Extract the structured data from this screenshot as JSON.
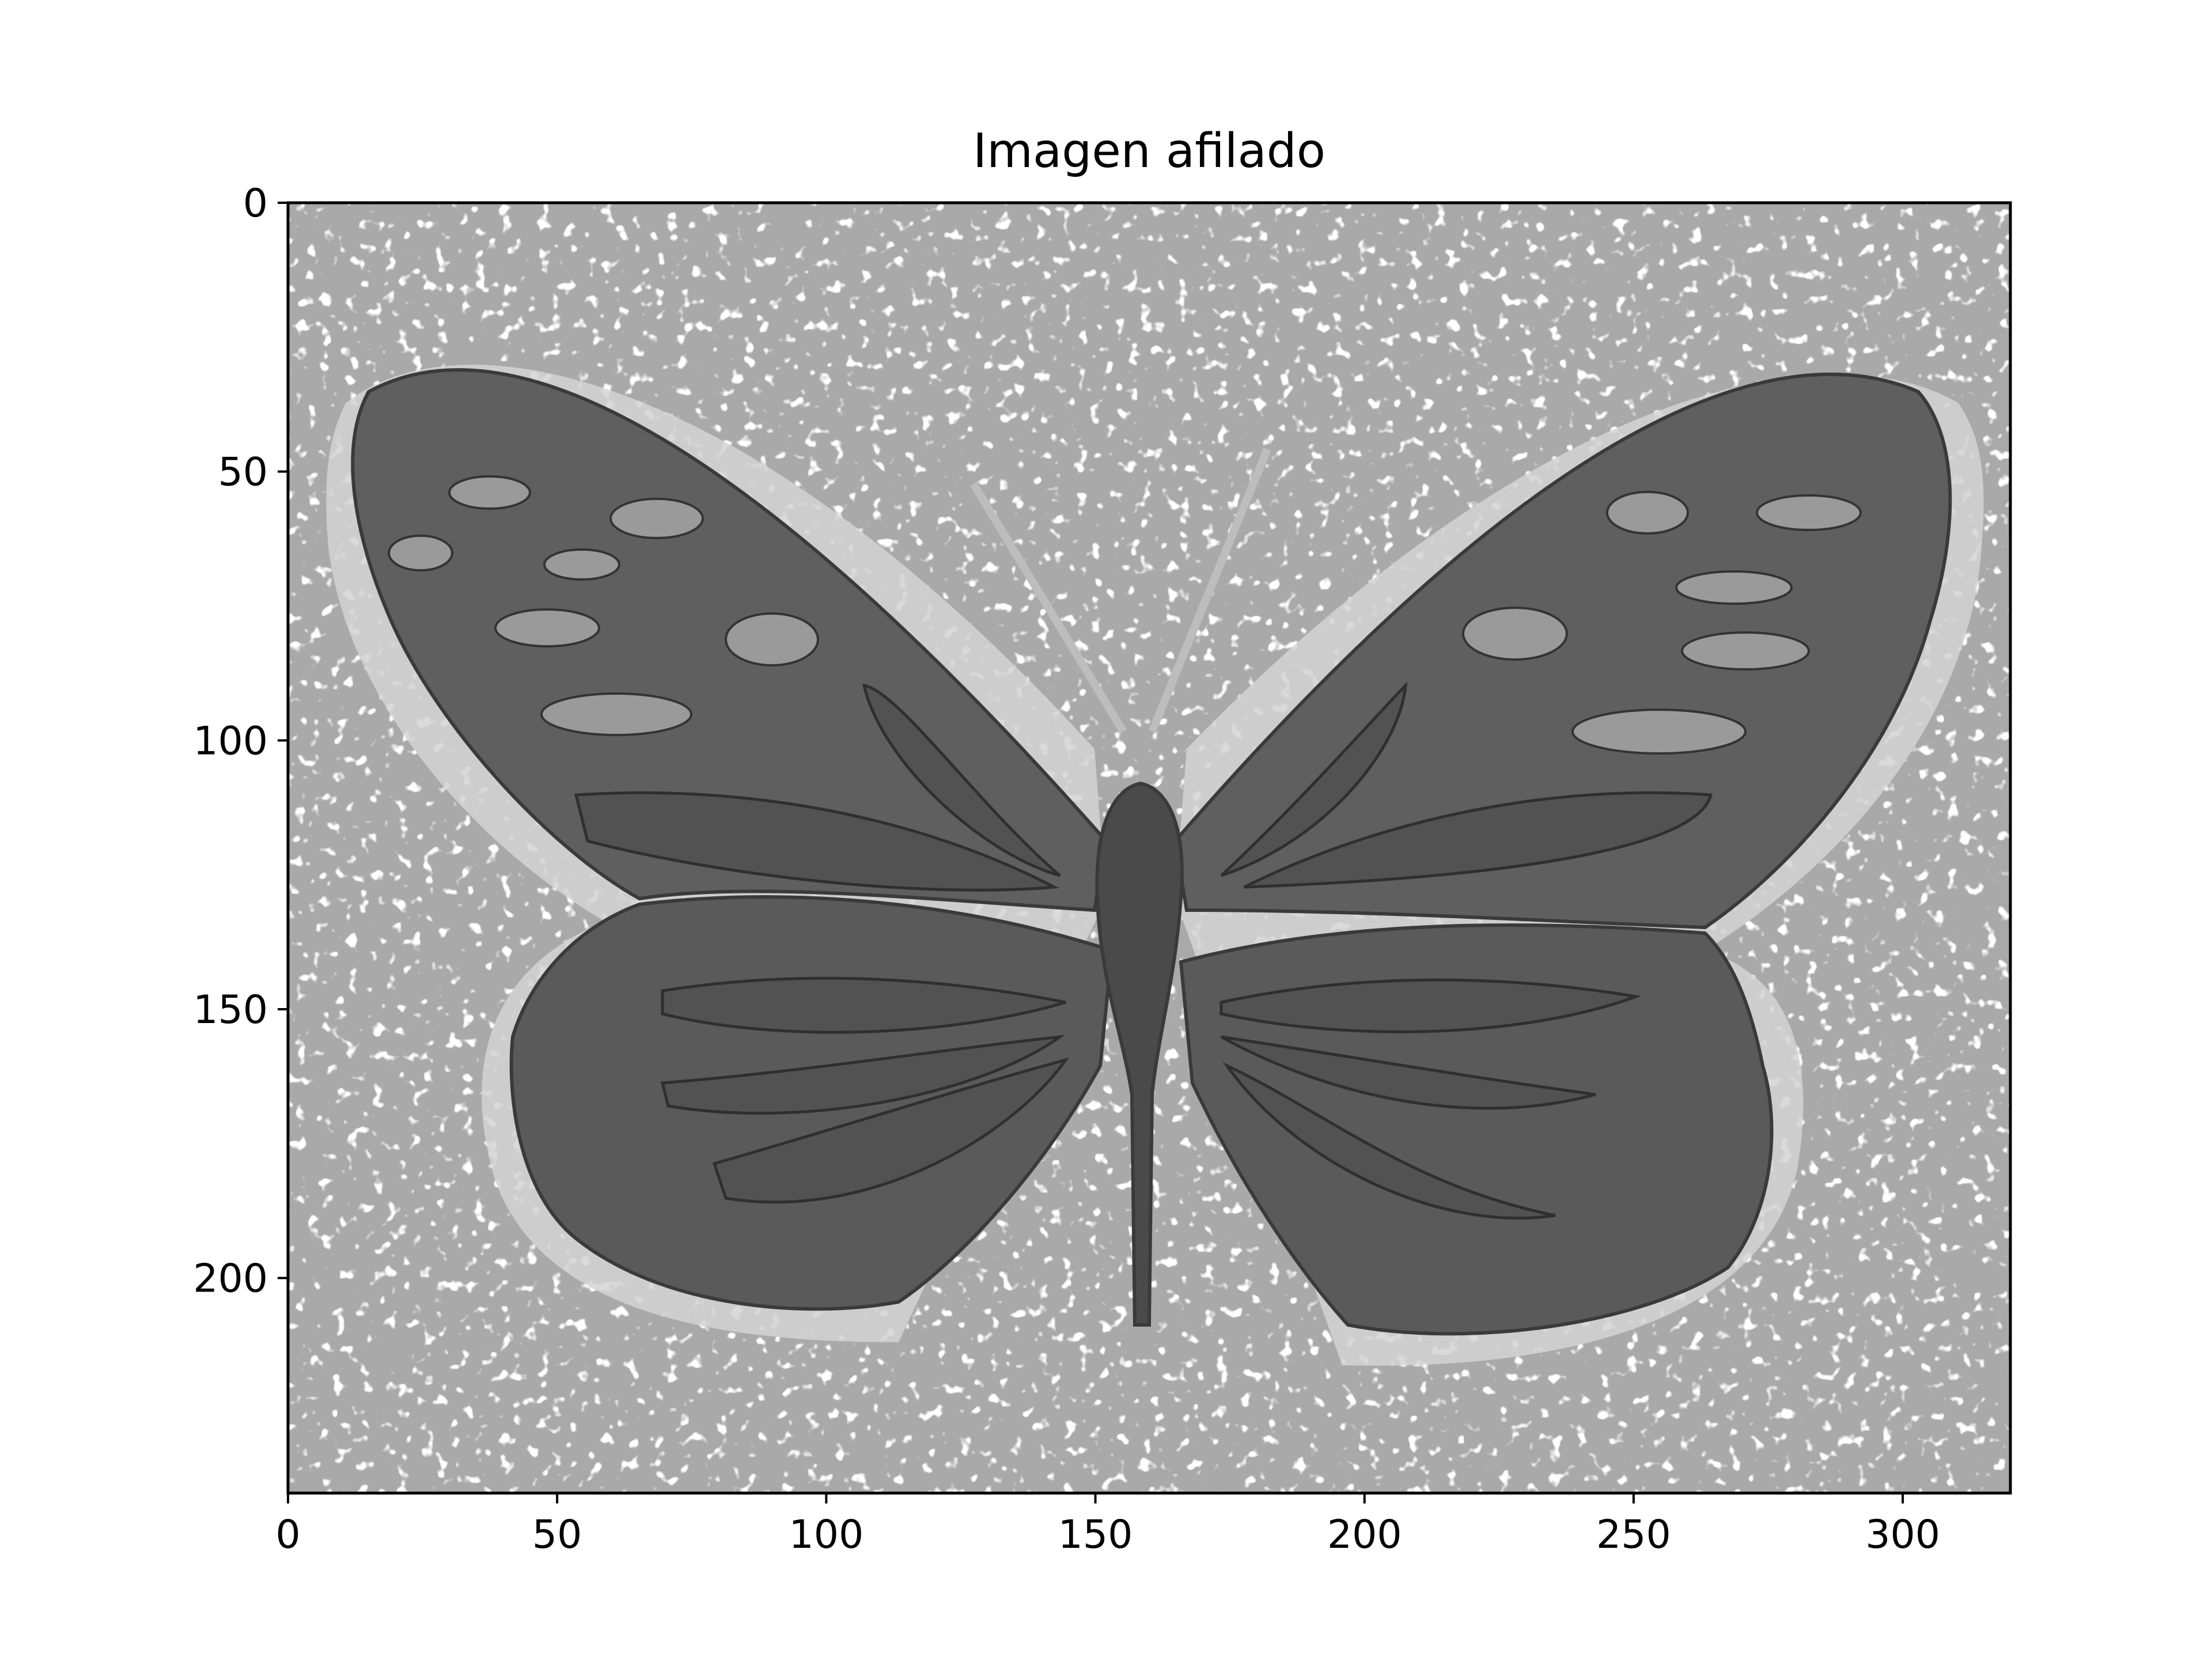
{
  "chart_data": {
    "type": "image",
    "title": "Imagen afilado",
    "xlabel": "",
    "ylabel": "",
    "image_shape": [
      240,
      320
    ],
    "colormap": "gray",
    "xlim": [
      0,
      320
    ],
    "ylim": [
      240,
      0
    ],
    "x_ticks": [
      0,
      50,
      100,
      150,
      200,
      250,
      300
    ],
    "y_ticks": [
      0,
      50,
      100,
      150,
      200
    ],
    "grid": false,
    "subject": "butterfly"
  }
}
